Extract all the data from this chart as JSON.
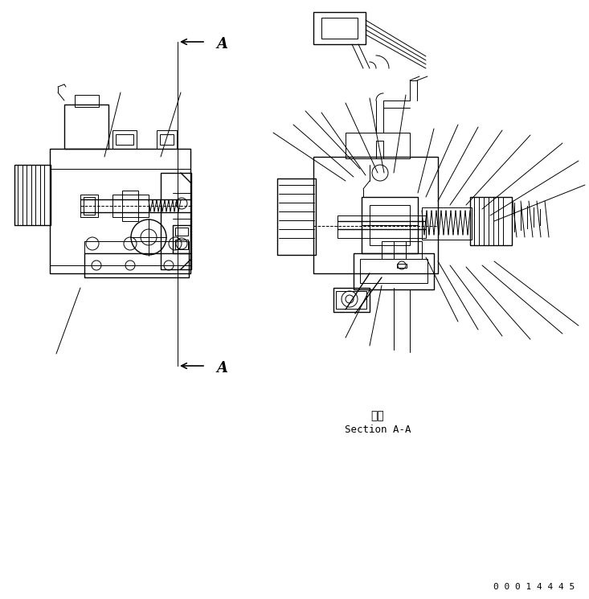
{
  "background_color": "#ffffff",
  "line_color": "#000000",
  "text_color": "#000000",
  "section_label_japanese": "断面",
  "section_label_english": "Section A-A",
  "part_number": "0 0 0 1 4 4 4 5",
  "figsize": [
    7.33,
    7.45
  ],
  "dpi": 100
}
